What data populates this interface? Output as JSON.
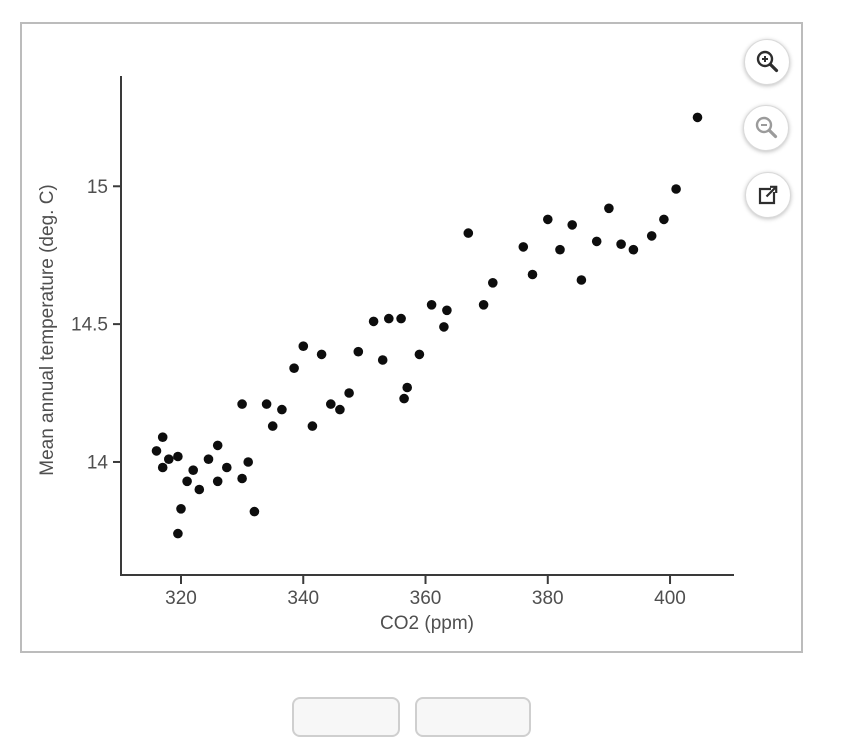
{
  "chart_data": {
    "type": "scatter",
    "title": "",
    "xlabel": "CO2 (ppm)",
    "ylabel": "Mean annual temperature (deg. C)",
    "xlim": [
      310.3,
      410.3
    ],
    "ylim": [
      13.59,
      15.4
    ],
    "x_ticks": [
      320,
      340,
      360,
      380,
      400
    ],
    "x_tick_labels": [
      "320",
      "340",
      "360",
      "380",
      "400"
    ],
    "y_ticks": [
      14,
      14.5,
      15
    ],
    "y_tick_labels": [
      "14",
      "14.5",
      "15"
    ],
    "grid": false,
    "legend": null,
    "marker_color": "#0d0d0d",
    "axis_color": "#3a3a3a",
    "label_color": "#4f4f4f",
    "points": [
      {
        "x": 317,
        "y": 14.09
      },
      {
        "x": 316,
        "y": 14.04
      },
      {
        "x": 318,
        "y": 14.01
      },
      {
        "x": 319.5,
        "y": 14.02
      },
      {
        "x": 317,
        "y": 13.98
      },
      {
        "x": 326,
        "y": 14.06
      },
      {
        "x": 324.5,
        "y": 14.01
      },
      {
        "x": 322,
        "y": 13.97
      },
      {
        "x": 321,
        "y": 13.93
      },
      {
        "x": 327.5,
        "y": 13.98
      },
      {
        "x": 326,
        "y": 13.93
      },
      {
        "x": 331,
        "y": 14.0
      },
      {
        "x": 330,
        "y": 13.94
      },
      {
        "x": 323,
        "y": 13.9
      },
      {
        "x": 320,
        "y": 13.83
      },
      {
        "x": 332,
        "y": 13.82
      },
      {
        "x": 319.5,
        "y": 13.74
      },
      {
        "x": 330,
        "y": 14.21
      },
      {
        "x": 334,
        "y": 14.21
      },
      {
        "x": 336.5,
        "y": 14.19
      },
      {
        "x": 335,
        "y": 14.13
      },
      {
        "x": 341.5,
        "y": 14.13
      },
      {
        "x": 344.5,
        "y": 14.21
      },
      {
        "x": 346,
        "y": 14.19
      },
      {
        "x": 347.5,
        "y": 14.25
      },
      {
        "x": 357,
        "y": 14.27
      },
      {
        "x": 356.5,
        "y": 14.23
      },
      {
        "x": 340,
        "y": 14.42
      },
      {
        "x": 343,
        "y": 14.39
      },
      {
        "x": 338.5,
        "y": 14.34
      },
      {
        "x": 349,
        "y": 14.4
      },
      {
        "x": 353,
        "y": 14.37
      },
      {
        "x": 359,
        "y": 14.39
      },
      {
        "x": 351.5,
        "y": 14.51
      },
      {
        "x": 354,
        "y": 14.52
      },
      {
        "x": 356,
        "y": 14.52
      },
      {
        "x": 361,
        "y": 14.57
      },
      {
        "x": 363.5,
        "y": 14.55
      },
      {
        "x": 363,
        "y": 14.49
      },
      {
        "x": 369.5,
        "y": 14.57
      },
      {
        "x": 371,
        "y": 14.65
      },
      {
        "x": 367,
        "y": 14.83
      },
      {
        "x": 376,
        "y": 14.78
      },
      {
        "x": 380,
        "y": 14.88
      },
      {
        "x": 377.5,
        "y": 14.68
      },
      {
        "x": 382,
        "y": 14.77
      },
      {
        "x": 384,
        "y": 14.86
      },
      {
        "x": 385.5,
        "y": 14.66
      },
      {
        "x": 388,
        "y": 14.8
      },
      {
        "x": 390,
        "y": 14.92
      },
      {
        "x": 392,
        "y": 14.79
      },
      {
        "x": 394,
        "y": 14.77
      },
      {
        "x": 397,
        "y": 14.82
      },
      {
        "x": 399,
        "y": 14.88
      },
      {
        "x": 401,
        "y": 14.99
      },
      {
        "x": 404.5,
        "y": 15.25
      }
    ]
  },
  "controls": {
    "zoom_in_icon": "magnifier-plus",
    "zoom_out_icon": "magnifier-minus",
    "open_external_icon": "external-link",
    "zoom_out_disabled": true,
    "icon_color": "#2e2e2e",
    "disabled_icon_color": "#9b9b9b"
  },
  "card": {
    "border_color": "#bcbcbc"
  }
}
